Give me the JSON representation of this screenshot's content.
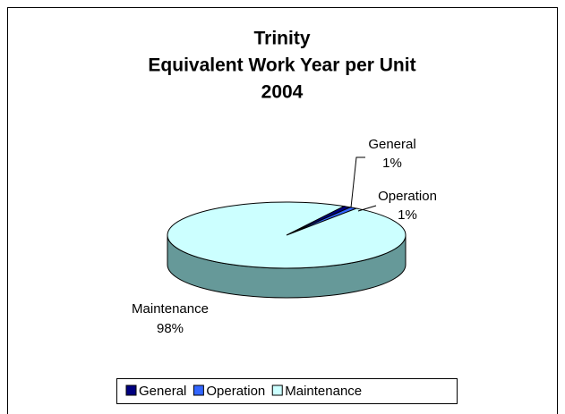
{
  "chart_data": {
    "type": "pie",
    "title": [
      "Trinity",
      "Equivalent Work Year per Unit",
      "2004"
    ],
    "categories": [
      "General",
      "Operation",
      "Maintenance"
    ],
    "values": [
      1,
      1,
      98
    ],
    "value_labels": [
      "1%",
      "1%",
      "98%"
    ],
    "colors": [
      "#000080",
      "#3366ff",
      "#ccffff"
    ],
    "legend": "bottom"
  }
}
